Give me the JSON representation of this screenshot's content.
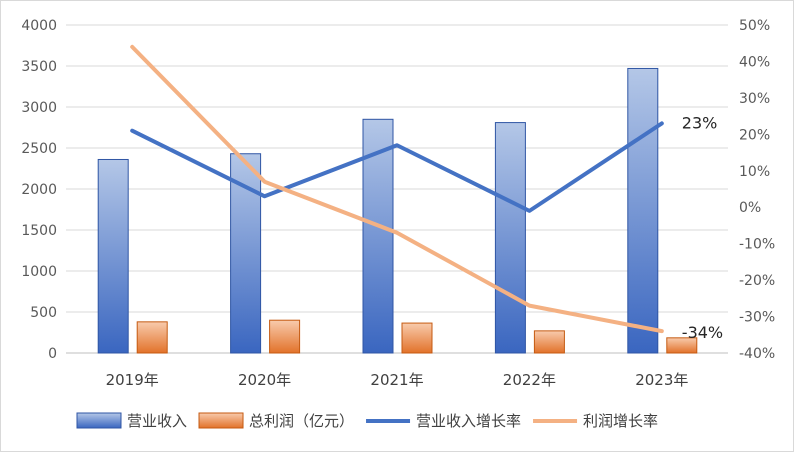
{
  "chart_data": {
    "type": "bar",
    "categories": [
      "2019年",
      "2020年",
      "2021年",
      "2022年",
      "2023年"
    ],
    "series": [
      {
        "name": "营业收入",
        "type": "bar",
        "axis": "left",
        "values": [
          2360,
          2430,
          2850,
          2810,
          3470
        ],
        "color": "#4472c4"
      },
      {
        "name": "总利润（亿元）",
        "type": "bar",
        "axis": "left",
        "values": [
          380,
          400,
          365,
          270,
          185
        ],
        "color": "#ed7d31"
      },
      {
        "name": "营业收入增长率",
        "type": "line",
        "axis": "right",
        "values": [
          21,
          3,
          17,
          -1,
          23
        ],
        "color": "#4472c4"
      },
      {
        "name": "利润增长率",
        "type": "line",
        "axis": "right",
        "values": [
          44,
          7,
          -7,
          -27,
          -34
        ],
        "color": "#f4b183"
      }
    ],
    "y_left": {
      "ylim": [
        0,
        4000
      ],
      "ticks": [
        "0",
        "500",
        "1000",
        "1500",
        "2000",
        "2500",
        "3000",
        "3500",
        "4000"
      ]
    },
    "y_right": {
      "ylim": [
        -40,
        50
      ],
      "ticks": [
        "-40%",
        "-30%",
        "-20%",
        "-10%",
        "0%",
        "10%",
        "20%",
        "30%",
        "40%",
        "50%"
      ]
    },
    "annotations": [
      {
        "series": "营业收入增长率",
        "index": 4,
        "text": "23%"
      },
      {
        "series": "利润增长率",
        "index": 4,
        "text": "-34%"
      }
    ],
    "grid": true,
    "legend_position": "bottom"
  }
}
